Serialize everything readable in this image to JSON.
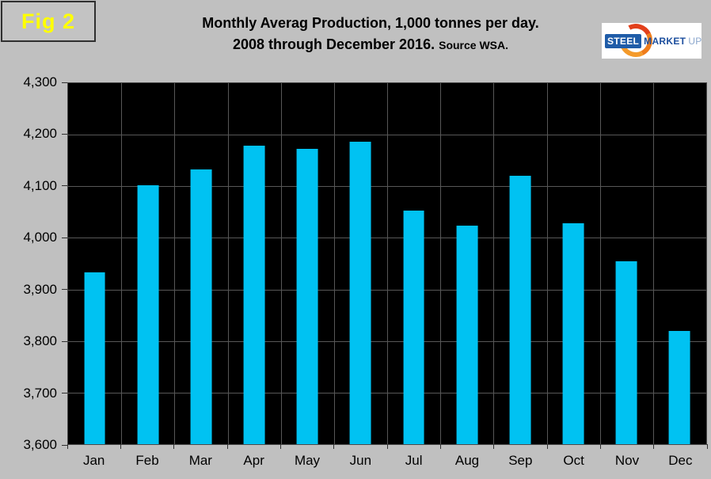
{
  "figure_label": "Fig 2",
  "title": {
    "line1": "Monthly Averag Production, 1,000 tonnes per day.",
    "line2": "2008 through December 2016.",
    "source": "Source WSA."
  },
  "logo": {
    "steel": "STEEL",
    "market": "MARKET",
    "update": "UPDATE"
  },
  "colors": {
    "page_background": "#c0c0c0",
    "plot_background": "#000000",
    "bar_fill": "#00c2f2",
    "gridline": "#575757",
    "figure_label_text": "#ffff00",
    "title_text": "#000000",
    "logo_arc_orange": "#ef7c1a",
    "logo_blue": "#1f5ca8"
  },
  "chart_data": {
    "type": "bar",
    "title": "Monthly Averag Production, 1,000 tonnes per day. 2008 through December 2016. Source WSA.",
    "categories": [
      "Jan",
      "Feb",
      "Mar",
      "Apr",
      "May",
      "Jun",
      "Jul",
      "Aug",
      "Sep",
      "Oct",
      "Nov",
      "Dec"
    ],
    "values": [
      3933,
      4102,
      4132,
      4178,
      4173,
      4186,
      4053,
      4023,
      4121,
      4028,
      3955,
      3820
    ],
    "xlabel": "",
    "ylabel": "",
    "ylim": [
      3600,
      4300
    ],
    "ytick_step": 100,
    "grid": true,
    "legend": false,
    "bar_color": "#00c2f2",
    "bar_width_fraction": 0.4
  }
}
